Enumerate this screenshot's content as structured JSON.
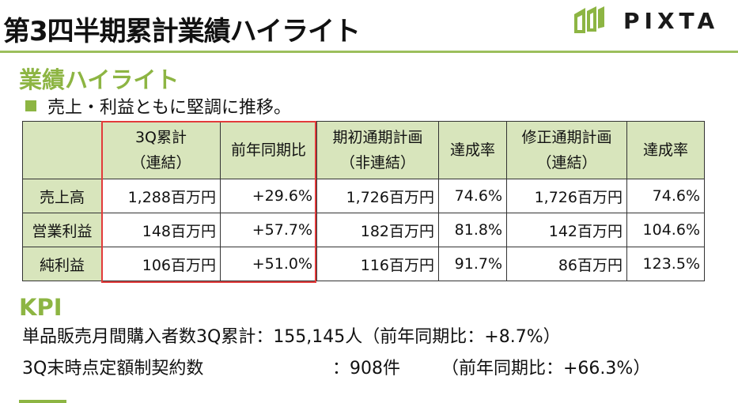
{
  "header": {
    "title": "第3四半期累計業績ハイライト",
    "logo_text": "PIXTA",
    "colors": {
      "accent": "#8db543",
      "rule": "#9cbf5c",
      "table_fill": "#d8e5bc",
      "highlight": "#e23b3b"
    }
  },
  "highlight": {
    "section_title": "業績ハイライト",
    "bullet": "売上・利益ともに堅調に推移。",
    "table": {
      "headers": [
        {
          "line1": "",
          "line2": ""
        },
        {
          "line1": "3Q累計",
          "line2": "（連結）"
        },
        {
          "line1": "前年同期比",
          "line2": ""
        },
        {
          "line1": "期初通期計画",
          "line2": "（非連結）"
        },
        {
          "line1": "達成率",
          "line2": ""
        },
        {
          "line1": "修正通期計画",
          "line2": "（連結）"
        },
        {
          "line1": "達成率",
          "line2": ""
        }
      ],
      "rows": [
        {
          "label": "売上高",
          "cells": [
            "1,288百万円",
            "+29.6%",
            "1,726百万円",
            "74.6%",
            "1,726百万円",
            "74.6%"
          ]
        },
        {
          "label": "営業利益",
          "cells": [
            "148百万円",
            "+57.7%",
            "182百万円",
            "81.8%",
            "142百万円",
            "104.6%"
          ]
        },
        {
          "label": "純利益",
          "cells": [
            "106百万円",
            "+51.0%",
            "116百万円",
            "91.7%",
            "86百万円",
            "123.5%"
          ]
        }
      ]
    }
  },
  "kpi": {
    "section_title": "KPI",
    "line1": "単品販売月間購入者数3Q累計：155,145人（前年同期比：+8.7%）",
    "line2_label": "3Q末時点定額制契約数",
    "line2_value": "：908件",
    "line2_ratio": "（前年同期比：+66.3%）"
  }
}
